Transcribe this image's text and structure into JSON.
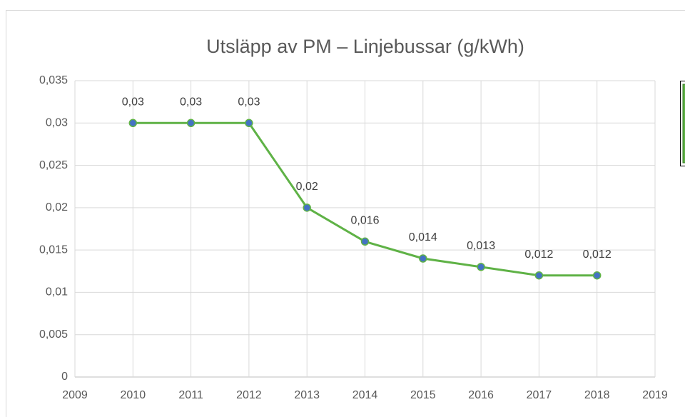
{
  "chart_data": {
    "type": "line",
    "title": "Utsläpp av PM – Linjebussar (g/kWh)",
    "x": [
      2010,
      2011,
      2012,
      2013,
      2014,
      2015,
      2016,
      2017,
      2018
    ],
    "series": [
      {
        "color": "#5fb246",
        "marker_color": "#4472c4",
        "values": [
          0.03,
          0.03,
          0.03,
          0.02,
          0.016,
          0.014,
          0.013,
          0.012,
          0.012
        ],
        "value_labels": [
          "0,03",
          "0,03",
          "0,03",
          "0,02",
          "0,016",
          "0,014",
          "0,013",
          "0,012",
          "0,012"
        ]
      }
    ],
    "xlim": [
      2009,
      2019
    ],
    "xticks": [
      2009,
      2010,
      2011,
      2012,
      2013,
      2014,
      2015,
      2016,
      2017,
      2018,
      2019
    ],
    "ylim": [
      0,
      0.035
    ],
    "yticks": [
      0,
      {
        "value": 0.005,
        "label": "0,005"
      },
      {
        "value": 0.01,
        "label": "0,01"
      },
      {
        "value": 0.015,
        "label": "0,015"
      },
      {
        "value": 0.02,
        "label": "0,02"
      },
      {
        "value": 0.025,
        "label": "0,025"
      },
      {
        "value": 0.03,
        "label": "0,03"
      },
      {
        "value": 0.035,
        "label": "0,035"
      }
    ],
    "grid": true
  }
}
